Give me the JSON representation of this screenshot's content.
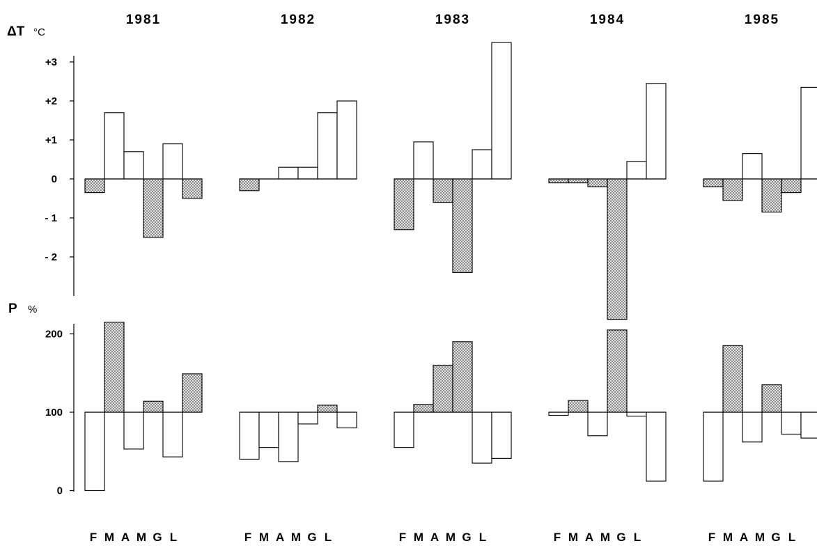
{
  "chart_data": {
    "type": "bar",
    "years": [
      "1981",
      "1982",
      "1983",
      "1984",
      "1985"
    ],
    "months": [
      "F",
      "M",
      "A",
      "M",
      "G",
      "L"
    ],
    "temperature": {
      "axis_label": "ΔT",
      "unit": "°C",
      "ticks": [
        "+3",
        "+2",
        "+1",
        "0",
        "- 1",
        "- 2"
      ],
      "tick_values": [
        3,
        2,
        1,
        0,
        -1,
        -2
      ],
      "ylim": [
        -3.6,
        3.6
      ],
      "series": [
        {
          "year": "1981",
          "values": [
            -0.35,
            1.7,
            0.7,
            -1.5,
            0.9,
            -0.5
          ]
        },
        {
          "year": "1982",
          "values": [
            -0.3,
            0,
            0.3,
            0.3,
            1.7,
            2.0
          ]
        },
        {
          "year": "1983",
          "values": [
            -1.3,
            0.95,
            -0.6,
            -2.4,
            0.75,
            3.5
          ]
        },
        {
          "year": "1984",
          "values": [
            -0.1,
            -0.1,
            -0.2,
            -3.6,
            0.45,
            2.45
          ]
        },
        {
          "year": "1985",
          "values": [
            -0.2,
            -0.55,
            0.65,
            -0.85,
            -0.35,
            2.35
          ]
        }
      ],
      "fill_rule": "negative values dotted, positive values open"
    },
    "precipitation": {
      "axis_label": "P",
      "unit": "%",
      "ticks": [
        "200",
        "100",
        "0"
      ],
      "tick_values": [
        200,
        100,
        0
      ],
      "ylim": [
        0,
        220
      ],
      "baseline": 100,
      "series": [
        {
          "year": "1981",
          "values": [
            0,
            215,
            53,
            114,
            43,
            149
          ]
        },
        {
          "year": "1982",
          "values": [
            40,
            55,
            37,
            85,
            109,
            80
          ]
        },
        {
          "year": "1983",
          "values": [
            55,
            110,
            160,
            190,
            35,
            41
          ]
        },
        {
          "year": "1984",
          "values": [
            96,
            115,
            70,
            205,
            95,
            12
          ]
        },
        {
          "year": "1985",
          "values": [
            12,
            185,
            62,
            135,
            72,
            67
          ]
        }
      ],
      "fill_rule": "values above 100 dotted, below 100 open"
    },
    "colors": {
      "ink": "#111111",
      "dot_fill": "#e2e2e2",
      "dot": "#1a1a1a"
    }
  }
}
